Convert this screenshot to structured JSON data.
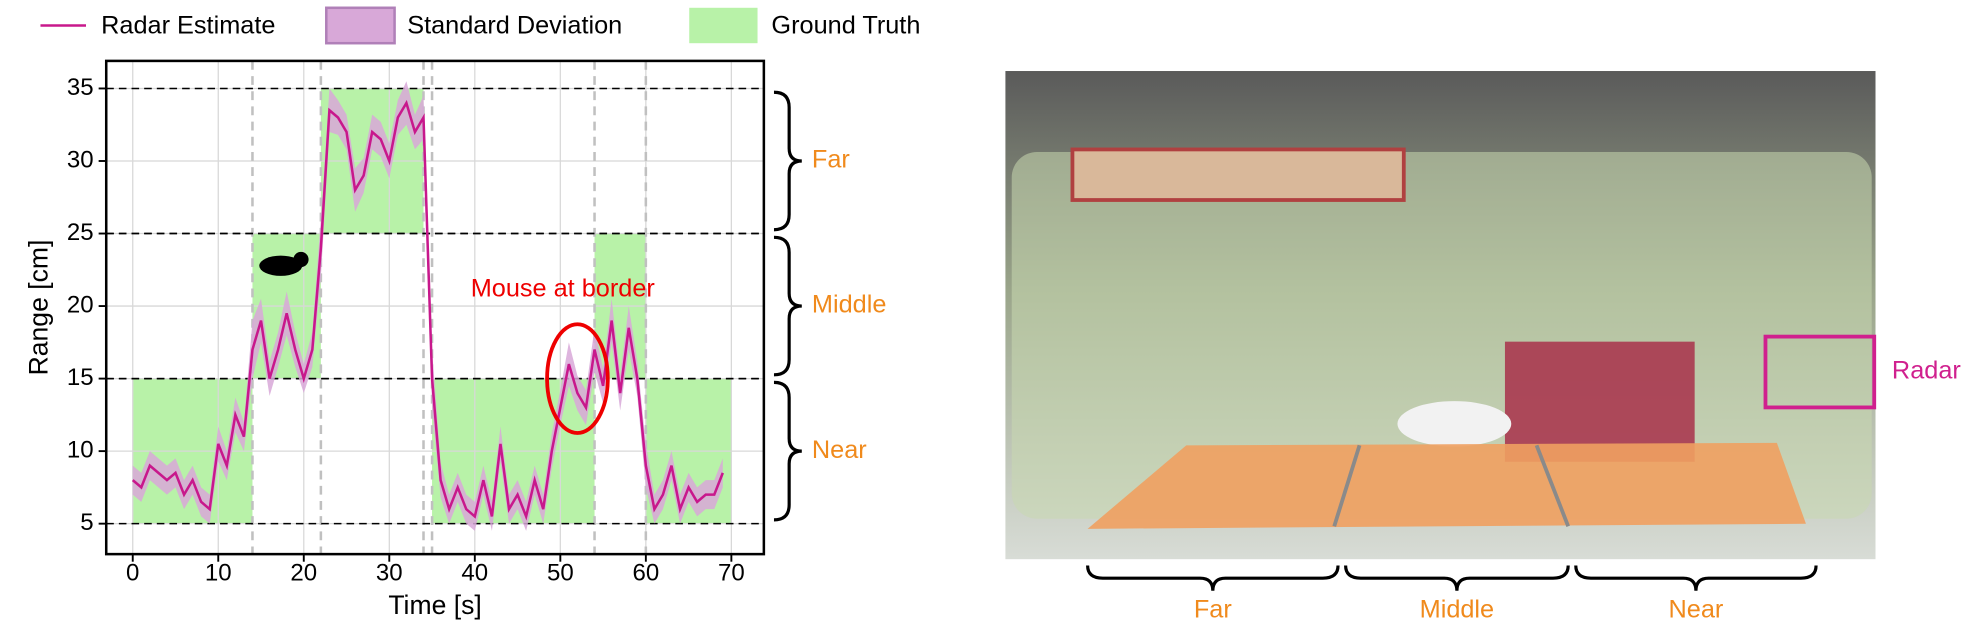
{
  "chart_data": {
    "type": "line",
    "xlabel": "Time [s]",
    "ylabel": "Range [cm]",
    "xlim": [
      -3.1,
      73.8
    ],
    "ylim": [
      2.9,
      36.9
    ],
    "xticks": [
      0,
      10,
      20,
      30,
      40,
      50,
      60,
      70
    ],
    "yticks": [
      5,
      10,
      15,
      20,
      25,
      30,
      35
    ],
    "grid": true,
    "series": [
      {
        "name": "Radar Estimate",
        "color": "#c8188c",
        "x": [
          0,
          1,
          2,
          3,
          4,
          5,
          6,
          7,
          8,
          9,
          10,
          11,
          12,
          13,
          14,
          15,
          16,
          17,
          18,
          19,
          20,
          21,
          22,
          23,
          24,
          25,
          26,
          27,
          28,
          29,
          30,
          31,
          32,
          33,
          34,
          35,
          36,
          37,
          38,
          39,
          40,
          41,
          42,
          43,
          44,
          45,
          46,
          47,
          48,
          49,
          50,
          51,
          52,
          53,
          54,
          55,
          56,
          57,
          58,
          59,
          60,
          61,
          62,
          63,
          64,
          65,
          66,
          67,
          68,
          69
        ],
        "values": [
          8,
          7.5,
          9,
          8.5,
          8,
          8.5,
          7,
          8,
          6.5,
          6,
          10.5,
          9,
          12.5,
          11,
          17,
          19,
          15,
          17,
          19.5,
          17,
          15,
          17,
          24,
          33.5,
          33,
          32,
          28,
          29,
          32,
          31.5,
          30,
          33,
          34,
          32,
          33,
          15,
          8,
          6,
          7.5,
          6,
          5.5,
          8,
          5.5,
          10.5,
          6,
          7,
          5.5,
          8,
          6,
          10,
          13,
          16,
          14,
          13,
          17,
          14.5,
          19,
          14,
          18.5,
          15,
          9,
          6,
          7,
          9,
          6,
          7.5,
          6.5,
          7,
          7,
          8.5
        ]
      }
    ],
    "band": {
      "name": "Standard Deviation",
      "color": "#d8a8d8",
      "std": [
        1,
        1,
        1,
        1,
        1,
        1,
        1,
        1,
        1,
        1,
        1.2,
        1,
        1.2,
        1,
        2,
        1.5,
        1.2,
        1.2,
        1.5,
        1.2,
        1,
        1.2,
        2,
        1.5,
        1.2,
        1.2,
        1.5,
        1.2,
        1.2,
        1.2,
        1.2,
        1.2,
        1.5,
        1.2,
        1.5,
        2,
        1.2,
        1,
        1,
        1,
        1,
        1,
        1,
        1.2,
        1,
        1,
        1,
        1,
        1,
        1.2,
        1.2,
        1.5,
        1.2,
        1.2,
        1.5,
        1.2,
        1.5,
        1.2,
        1.5,
        1.2,
        1.5,
        1,
        1,
        1,
        1,
        1,
        1,
        1,
        1,
        1
      ]
    },
    "ground_truth": {
      "name": "Ground Truth",
      "color": "#b8f2a8",
      "segments": [
        {
          "start": 0,
          "end": 14,
          "low": 5,
          "high": 15
        },
        {
          "start": 14,
          "end": 22,
          "low": 15,
          "high": 25
        },
        {
          "start": 22,
          "end": 34,
          "low": 25,
          "high": 35
        },
        {
          "start": 35,
          "end": 54,
          "low": 5,
          "high": 15
        },
        {
          "start": 54,
          "end": 60,
          "low": 15,
          "high": 25
        },
        {
          "start": 60,
          "end": 70,
          "low": 5,
          "high": 15
        }
      ]
    },
    "boundaries": [
      14,
      22,
      34,
      35,
      54,
      60
    ],
    "regions": [
      {
        "label": "Far",
        "low": 25,
        "high": 35
      },
      {
        "label": "Middle",
        "low": 15,
        "high": 25
      },
      {
        "label": "Near",
        "low": 5,
        "high": 15
      }
    ],
    "annotation": {
      "text": "Mouse at border",
      "x": 52,
      "y": 15
    }
  },
  "photo": {
    "labels": [
      "Far",
      "Middle",
      "Near"
    ],
    "radar_label": "Radar"
  }
}
